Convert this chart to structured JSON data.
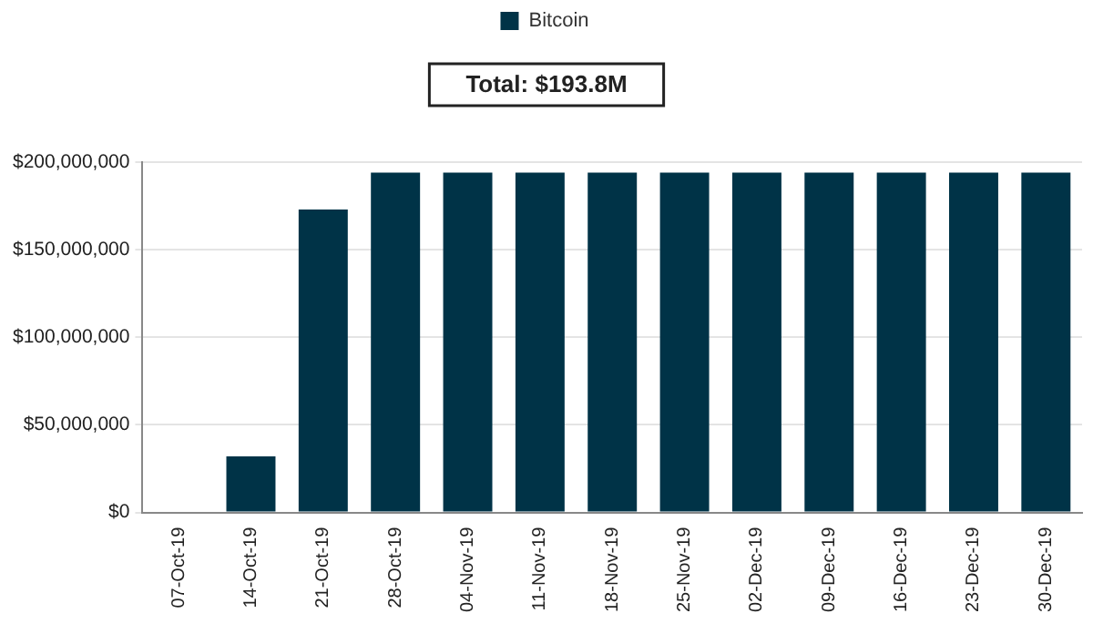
{
  "chart_data": {
    "type": "bar",
    "categories": [
      "07-Oct-19",
      "14-Oct-19",
      "21-Oct-19",
      "28-Oct-19",
      "04-Nov-19",
      "11-Nov-19",
      "18-Nov-19",
      "25-Nov-19",
      "02-Dec-19",
      "09-Dec-19",
      "16-Dec-19",
      "23-Dec-19",
      "30-Dec-19"
    ],
    "series": [
      {
        "name": "Bitcoin",
        "color": "#003347",
        "values": [
          0,
          32000000,
          173000000,
          194000000,
          194000000,
          194000000,
          194000000,
          194000000,
          194000000,
          194000000,
          194000000,
          194000000,
          194000000
        ]
      }
    ],
    "ylim": [
      0,
      200000000
    ],
    "yticks": [
      {
        "value": 0,
        "label": "$0"
      },
      {
        "value": 50000000,
        "label": "$50,000,000"
      },
      {
        "value": 100000000,
        "label": "$100,000,000"
      },
      {
        "value": 150000000,
        "label": "$150,000,000"
      },
      {
        "value": 200000000,
        "label": "$200,000,000"
      }
    ],
    "annotations": [
      "Total: $193.8M"
    ],
    "grid": "y",
    "legend": "top"
  }
}
